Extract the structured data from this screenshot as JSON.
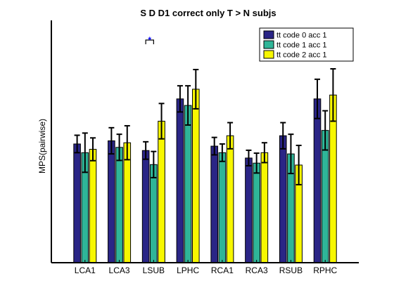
{
  "chart_data": {
    "type": "bar",
    "title": "S D D1 correct only T > N subjs",
    "xlabel": "",
    "ylabel": "MPS(pairwise)",
    "categories": [
      "LCA1",
      "LCA3",
      "LSUB",
      "LPHC",
      "RCA1",
      "RCA3",
      "RSUB",
      "RPHC"
    ],
    "ylim": [
      0,
      100
    ],
    "y_ticks_shown": false,
    "grid": false,
    "legend_position": "top-right",
    "series": [
      {
        "name": "tt code 0 acc 1",
        "color": "#2a2586",
        "values": [
          49,
          50.3,
          46.3,
          67.6,
          48.1,
          43.2,
          52.4,
          67.6
        ],
        "errors": [
          3.6,
          5.4,
          3.6,
          5.4,
          3.6,
          3.2,
          5.4,
          8.1
        ]
      },
      {
        "name": "tt code 1 acc 1",
        "color": "#2fb598",
        "values": [
          45.4,
          47.6,
          40.5,
          64.9,
          45.4,
          41.1,
          44.9,
          54.6
        ],
        "errors": [
          8.1,
          5.4,
          5.4,
          8.1,
          3.6,
          4.1,
          8.1,
          8.1
        ]
      },
      {
        "name": "tt code 2 acc 1",
        "color": "#f7f700",
        "values": [
          46.8,
          49.5,
          58.4,
          71.6,
          52.4,
          45.4,
          40.3,
          69.2
        ],
        "errors": [
          4.7,
          7.0,
          7.3,
          8.1,
          5.4,
          4.1,
          8.1,
          10.8
        ]
      }
    ],
    "annotations": [
      {
        "category": "LSUB",
        "text": "*",
        "color": "#0000ff"
      }
    ]
  }
}
